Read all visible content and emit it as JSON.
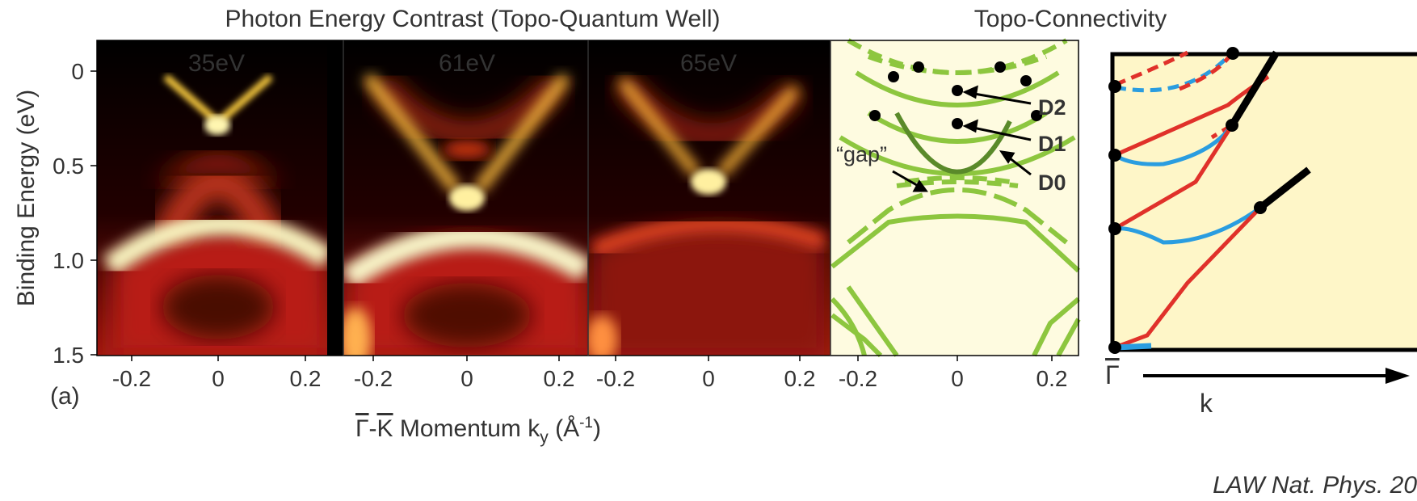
{
  "title_left": "Photon Energy Contrast (Topo-Quantum Well)",
  "title_right": "Topo-Connectivity",
  "panels": [
    {
      "label": "35eV"
    },
    {
      "label": "61eV"
    },
    {
      "label": "65eV"
    }
  ],
  "y_axis": {
    "label": "Binding Energy (eV)",
    "ticks": [
      "0",
      "0.5",
      "1.0",
      "1.5"
    ]
  },
  "x_axis": {
    "ticks": [
      "-0.2",
      "0",
      "0.2"
    ],
    "label": {
      "gamma": "Γ",
      "dash": "-",
      "k": "K",
      "text": " Momentum k",
      "sub": "y",
      "unit": " (Å",
      "sup": "-1",
      "close": ")"
    }
  },
  "panel_tag": "(a)",
  "annotations": {
    "d2": "D2",
    "d1": "D1",
    "d0": "D0",
    "gap": "“gap”"
  },
  "connectivity": {
    "gamma": "Γ",
    "k": "k"
  },
  "citation": "LAW Nat. Phys. 20"
}
